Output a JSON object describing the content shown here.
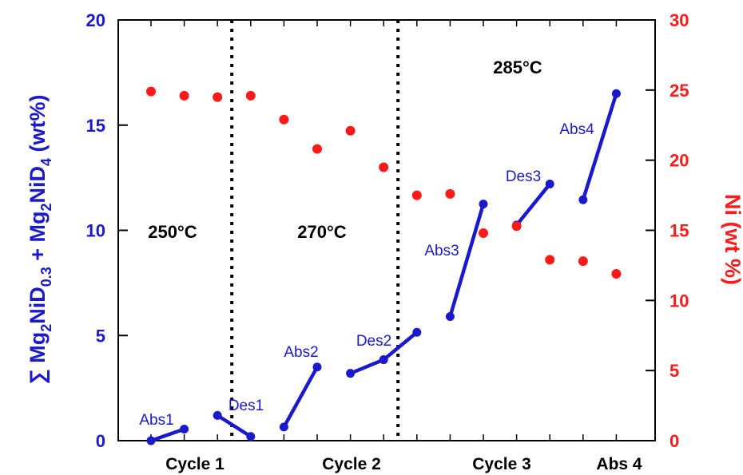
{
  "chart_data": {
    "type": "line",
    "left_axis": {
      "label_parts": [
        "∑ Mg",
        "2",
        "NiD",
        "0.3",
        " + Mg",
        "2",
        "NiD",
        "4",
        " (wt%)"
      ],
      "ylim": [
        0,
        20
      ],
      "ticks": [
        "0",
        "5",
        "10",
        "15",
        "20"
      ],
      "color": "#1a1acc"
    },
    "right_axis": {
      "label": "Ni (wt %)",
      "ylim": [
        0,
        30
      ],
      "ticks": [
        "0",
        "5",
        "10",
        "15",
        "20",
        "25",
        "30"
      ],
      "color": "#ff1a1a"
    },
    "x_categories": [
      "Cycle 1",
      "Cycle 2",
      "Cycle 3",
      "Abs 4"
    ],
    "temperature_labels": [
      "250°C",
      "270°C",
      "285°C"
    ],
    "series": [
      {
        "axis": "left",
        "style": "line-segments",
        "color": "#1a1acc",
        "segments": [
          {
            "label": "Abs1",
            "points": [
              [
                1,
                0.0
              ],
              [
                2,
                0.55
              ]
            ]
          },
          {
            "label": "Des1",
            "points": [
              [
                3,
                1.2
              ],
              [
                4,
                0.2
              ]
            ]
          },
          {
            "label": "Abs2",
            "points": [
              [
                5,
                0.65
              ],
              [
                6,
                3.5
              ]
            ]
          },
          {
            "label": "Des2",
            "points": [
              [
                7,
                3.2
              ],
              [
                8,
                3.85
              ],
              [
                9,
                5.15
              ]
            ]
          },
          {
            "label": "Abs3",
            "points": [
              [
                10,
                5.9
              ],
              [
                11,
                11.25
              ]
            ]
          },
          {
            "label": "Des3",
            "points": [
              [
                12,
                10.25
              ],
              [
                13,
                12.2
              ]
            ]
          },
          {
            "label": "Abs4",
            "points": [
              [
                14,
                11.45
              ],
              [
                15,
                16.5
              ]
            ]
          }
        ]
      },
      {
        "axis": "right",
        "style": "scatter",
        "color": "#ff1a1a",
        "points": [
          [
            1,
            24.9
          ],
          [
            2,
            24.6
          ],
          [
            3,
            24.5
          ],
          [
            4,
            24.6
          ],
          [
            5,
            22.9
          ],
          [
            6,
            20.8
          ],
          [
            7,
            22.1
          ],
          [
            8,
            19.5
          ],
          [
            9,
            17.5
          ],
          [
            10,
            17.6
          ],
          [
            11,
            14.8
          ],
          [
            12,
            15.3
          ],
          [
            13,
            12.9
          ],
          [
            14,
            12.8
          ],
          [
            15,
            11.9
          ]
        ]
      }
    ],
    "cycle_dividers": [
      3,
      8
    ]
  }
}
